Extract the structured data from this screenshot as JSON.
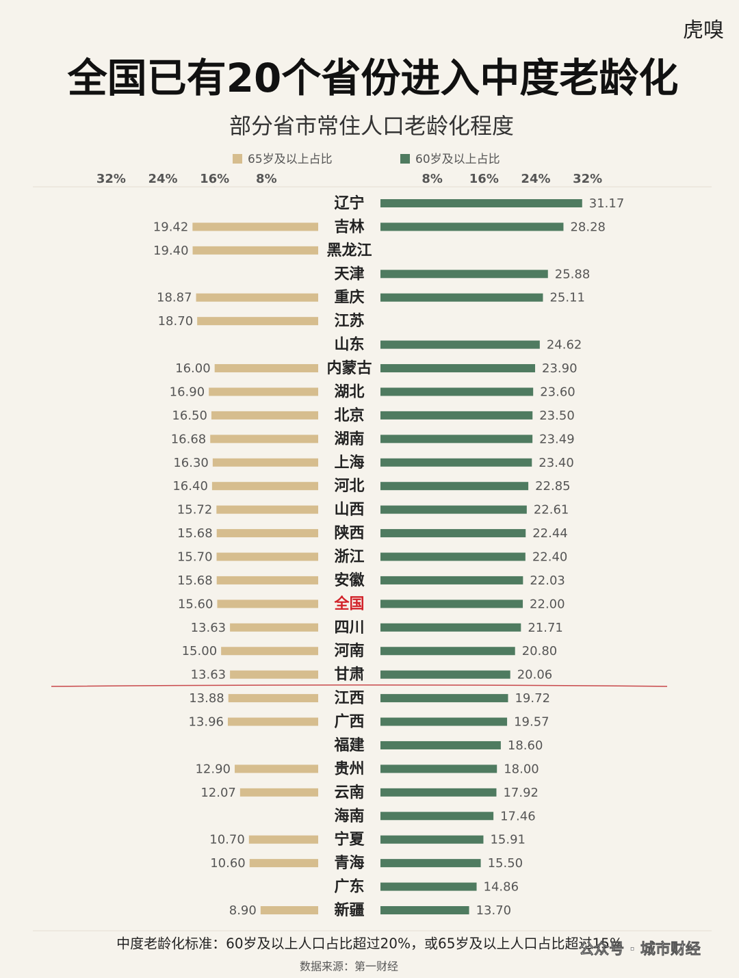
{
  "logo": "虎嗅",
  "chart_data": {
    "type": "bar",
    "title": "全国已有20个省份进入中度老龄化",
    "subtitle": "部分省市常住人口老龄化程度",
    "categories": [
      "辽宁",
      "吉林",
      "黑龙江",
      "天津",
      "重庆",
      "江苏",
      "山东",
      "内蒙古",
      "湖北",
      "北京",
      "湖南",
      "上海",
      "河北",
      "山西",
      "陕西",
      "浙江",
      "安徽",
      "全国",
      "四川",
      "河南",
      "甘肃",
      "江西",
      "广西",
      "福建",
      "贵州",
      "云南",
      "海南",
      "宁夏",
      "青海",
      "广东",
      "新疆"
    ],
    "highlight": 17,
    "highlight_color": "#d2232a",
    "xlim": [
      0,
      35
    ],
    "xticks": [
      {
        "value": 8,
        "label": "8%"
      },
      {
        "value": 16,
        "label": "16%"
      },
      {
        "value": 24,
        "label": "24%"
      },
      {
        "value": 32,
        "label": "32%"
      }
    ],
    "series": [
      {
        "name": "65岁及以上占比",
        "color": "#d6bd8e",
        "side": "left",
        "values": [
          null,
          19.42,
          19.4,
          null,
          18.87,
          18.7,
          null,
          16.0,
          16.9,
          16.5,
          16.68,
          16.3,
          16.4,
          15.72,
          15.68,
          15.7,
          15.68,
          15.6,
          13.63,
          15.0,
          13.63,
          13.88,
          13.96,
          null,
          12.9,
          12.07,
          null,
          10.7,
          10.6,
          null,
          8.9
        ],
        "value_labels": [
          null,
          "19.42",
          "19.40",
          null,
          "18.87",
          "18.70",
          null,
          "16.00",
          "16.90",
          "16.50",
          "16.68",
          "16.30",
          "16.40",
          "15.72",
          "15.68",
          "15.70",
          "15.68",
          "15.60",
          "13.63",
          "15.00",
          "13.63",
          "13.88",
          "13.96",
          null,
          "12.90",
          "12.07",
          null,
          "10.70",
          "10.60",
          null,
          "8.90"
        ]
      },
      {
        "name": "60岁及以上占比",
        "color": "#4f7b60",
        "side": "right",
        "values": [
          31.17,
          28.28,
          null,
          25.88,
          25.11,
          null,
          24.62,
          23.9,
          23.6,
          23.5,
          23.49,
          23.4,
          22.85,
          22.61,
          22.44,
          22.4,
          22.03,
          22.0,
          21.71,
          20.8,
          20.06,
          19.72,
          19.57,
          18.6,
          18.0,
          17.92,
          17.46,
          15.91,
          15.5,
          14.86,
          13.7
        ],
        "value_labels": [
          "31.17",
          "28.28",
          null,
          "25.88",
          "25.11",
          null,
          "24.62",
          "23.90",
          "23.60",
          "23.50",
          "23.49",
          "23.40",
          "22.85",
          "22.61",
          "22.44",
          "22.40",
          "22.03",
          "22.00",
          "21.71",
          "20.80",
          "20.06",
          "19.72",
          "19.57",
          "18.60",
          "18.00",
          "17.92",
          "17.46",
          "15.91",
          "15.50",
          "14.86",
          "13.70"
        ]
      }
    ],
    "footnote": "中度老龄化标准：60岁及以上人口占比超过20%，或65岁及以上人口占比超过15%",
    "source": "数据来源：第一财经",
    "watermark": "公众号 · 城市财经"
  }
}
